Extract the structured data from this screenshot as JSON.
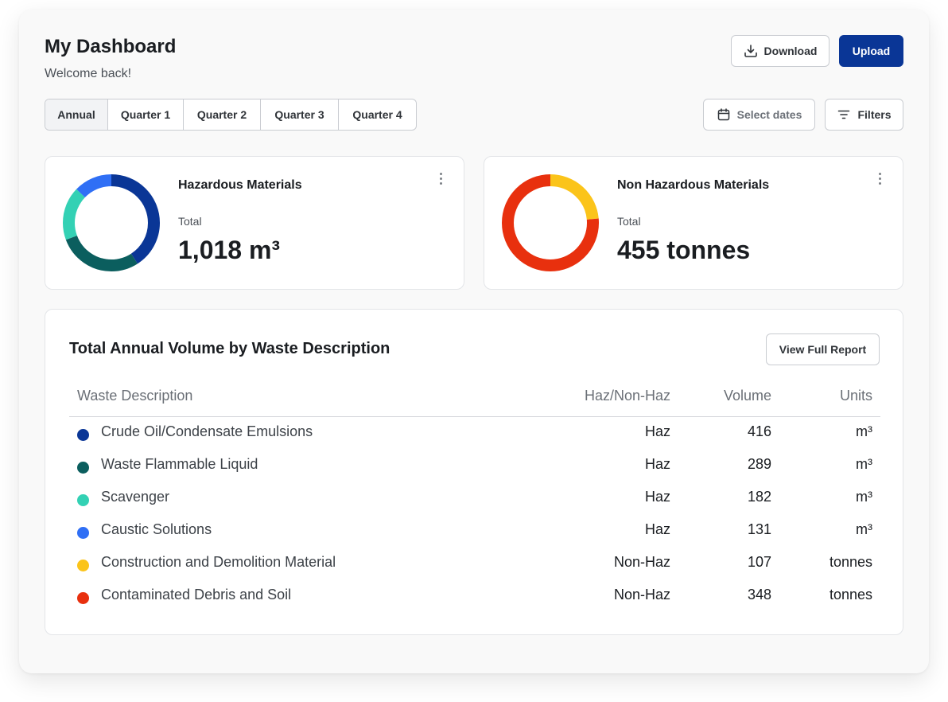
{
  "header": {
    "title": "My Dashboard",
    "subtitle": "Welcome back!",
    "download_label": "Download",
    "upload_label": "Upload"
  },
  "periods": {
    "tabs": [
      "Annual",
      "Quarter 1",
      "Quarter 2",
      "Quarter 3",
      "Quarter 4"
    ],
    "selected": "Annual"
  },
  "toolbar": {
    "dates_placeholder": "Select dates",
    "filters_label": "Filters"
  },
  "cards": {
    "hazardous": {
      "title": "Hazardous Materials",
      "total_label": "Total",
      "total_value": "1,018 m³"
    },
    "non_hazardous": {
      "title": "Non Hazardous Materials",
      "total_label": "Total",
      "total_value": "455 tonnes"
    }
  },
  "table": {
    "title": "Total Annual Volume by Waste Description",
    "report_button": "View Full Report",
    "columns": {
      "description": "Waste Description",
      "haz": "Haz/Non-Haz",
      "volume": "Volume",
      "units": "Units"
    },
    "rows": [
      {
        "description": "Crude Oil/Condensate Emulsions",
        "haz": "Haz",
        "volume": "416",
        "units": "m³",
        "color": "#0a3696"
      },
      {
        "description": "Waste Flammable Liquid",
        "haz": "Haz",
        "volume": "289",
        "units": "m³",
        "color": "#0b5e5e"
      },
      {
        "description": "Scavenger",
        "haz": "Haz",
        "volume": "182",
        "units": "m³",
        "color": "#33d1b4"
      },
      {
        "description": "Caustic Solutions",
        "haz": "Haz",
        "volume": "131",
        "units": "m³",
        "color": "#2f6ff5"
      },
      {
        "description": "Construction and Demolition Material",
        "haz": "Non-Haz",
        "volume": "107",
        "units": "tonnes",
        "color": "#fbc41a"
      },
      {
        "description": "Contaminated Debris and Soil",
        "haz": "Non-Haz",
        "volume": "348",
        "units": "tonnes",
        "color": "#e8300e"
      }
    ]
  },
  "chart_data": [
    {
      "type": "pie",
      "categories": [
        "Crude Oil/Condensate Emulsions",
        "Waste Flammable Liquid",
        "Scavenger",
        "Caustic Solutions"
      ],
      "values": [
        416,
        289,
        182,
        131
      ],
      "colors": [
        "#0a3696",
        "#0b5e5e",
        "#33d1b4",
        "#2f6ff5"
      ]
    },
    {
      "type": "pie",
      "categories": [
        "Construction and Demolition Material",
        "Contaminated Debris and Soil"
      ],
      "values": [
        107,
        348
      ],
      "colors": [
        "#fbc41a",
        "#e8300e"
      ]
    }
  ]
}
